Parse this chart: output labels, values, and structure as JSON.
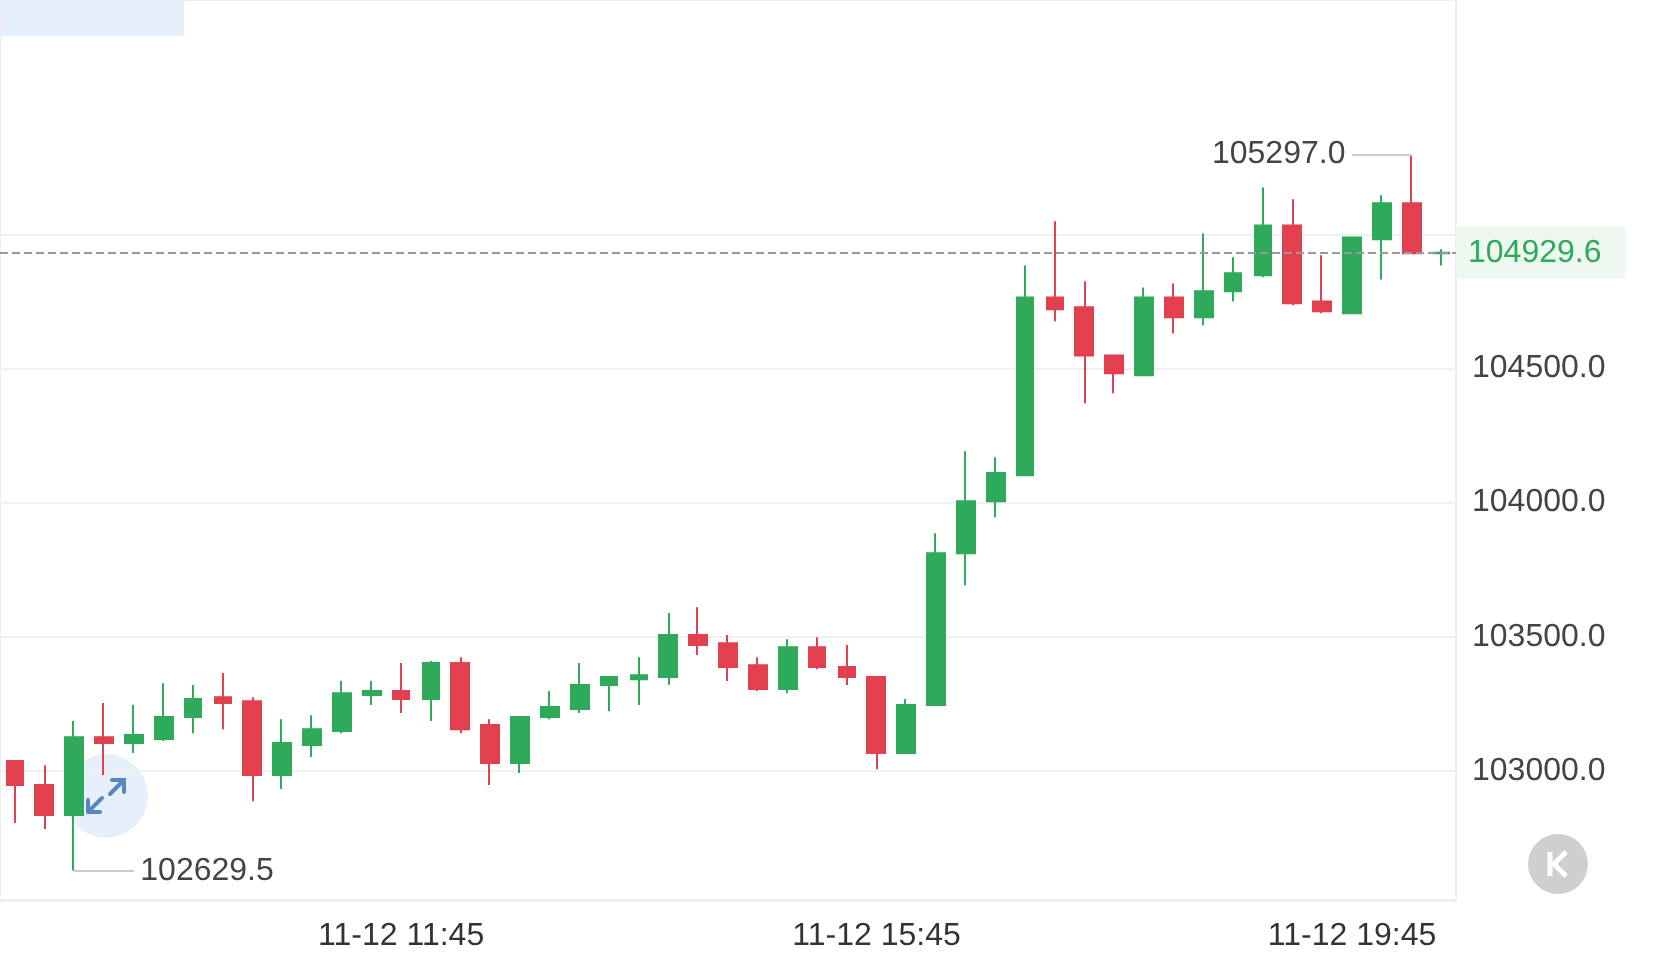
{
  "chart_data": {
    "type": "candlestick",
    "categories": [
      null,
      null,
      null,
      null,
      null,
      null,
      null,
      null,
      null,
      null,
      null,
      null,
      null,
      "11-12 11:45",
      null,
      null,
      null,
      null,
      null,
      null,
      null,
      null,
      null,
      null,
      null,
      null,
      null,
      null,
      null,
      "11-12 15:45",
      null,
      null,
      null,
      null,
      null,
      null,
      null,
      null,
      null,
      null,
      null,
      null,
      null,
      null,
      null,
      "11-12 19:45",
      null,
      null,
      null
    ],
    "ohlc": [
      [
        103037,
        103040,
        102807,
        102948
      ],
      [
        102948,
        103022,
        102784,
        102836
      ],
      [
        102836,
        103186,
        102629.5,
        103126
      ],
      [
        103126,
        103253,
        102985,
        103104
      ],
      [
        103104,
        103246,
        103067,
        103134
      ],
      [
        103119,
        103327,
        103112,
        103201
      ],
      [
        103201,
        103320,
        103141,
        103268
      ],
      [
        103275,
        103365,
        103156,
        103253
      ],
      [
        103260,
        103275,
        102888,
        102985
      ],
      [
        102985,
        103193,
        102933,
        103104
      ],
      [
        103097,
        103208,
        103052,
        103156
      ],
      [
        103149,
        103335,
        103141,
        103290
      ],
      [
        103283,
        103335,
        103246,
        103298
      ],
      [
        103298,
        103402,
        103216,
        103268
      ],
      [
        103268,
        103410,
        103186,
        103402
      ],
      [
        103402,
        103424,
        103141,
        103156
      ],
      [
        103171,
        103193,
        102948,
        103030
      ],
      [
        103030,
        103201,
        102993,
        103201
      ],
      [
        103201,
        103298,
        103193,
        103238
      ],
      [
        103231,
        103402,
        103216,
        103320
      ],
      [
        103320,
        103350,
        103223,
        103350
      ],
      [
        103342,
        103424,
        103246,
        103357
      ],
      [
        103350,
        103588,
        103320,
        103506
      ],
      [
        103506,
        103610,
        103432,
        103469
      ],
      [
        103476,
        103506,
        103335,
        103387
      ],
      [
        103394,
        103424,
        103298,
        103305
      ],
      [
        103305,
        103491,
        103290,
        103461
      ],
      [
        103461,
        103498,
        103379,
        103387
      ],
      [
        103387,
        103469,
        103320,
        103350
      ],
      [
        103350,
        103350,
        103007,
        103067
      ],
      [
        103067,
        103268,
        103067,
        103246
      ],
      [
        103246,
        103885,
        103246,
        103811
      ],
      [
        103811,
        104190,
        103692,
        104004
      ],
      [
        104004,
        104168,
        103945,
        104109
      ],
      [
        104101,
        104882,
        104101,
        104763
      ],
      [
        104763,
        105046,
        104674,
        104719
      ],
      [
        104726,
        104823,
        104369,
        104547
      ],
      [
        104547,
        104547,
        104406,
        104481
      ],
      [
        104473,
        104800,
        104473,
        104763
      ],
      [
        104763,
        104815,
        104629,
        104689
      ],
      [
        104689,
        105001,
        104659,
        104786
      ],
      [
        104786,
        104912,
        104748,
        104853
      ],
      [
        104845,
        105172,
        104838,
        105031
      ],
      [
        105031,
        105128,
        104734,
        104741
      ],
      [
        104748,
        104920,
        104704,
        104711
      ],
      [
        104704,
        104986,
        104704,
        104986
      ],
      [
        104979,
        105143,
        104830,
        105113
      ],
      [
        105113,
        105297,
        104927,
        104927
      ],
      [
        104927,
        104942,
        104882,
        104929.6
      ]
    ],
    "colors": [
      "#e2404f",
      "#e2404f",
      "#2fa95a",
      "#e2404f",
      "#2fa95a",
      "#2fa95a",
      "#2fa95a",
      "#e2404f",
      "#e2404f",
      "#2fa95a",
      "#2fa95a",
      "#2fa95a",
      "#2fa95a",
      "#e2404f",
      "#2fa95a",
      "#e2404f",
      "#e2404f",
      "#2fa95a",
      "#2fa95a",
      "#2fa95a",
      "#2fa95a",
      "#2fa95a",
      "#2fa95a",
      "#e2404f",
      "#e2404f",
      "#e2404f",
      "#2fa95a",
      "#e2404f",
      "#e2404f",
      "#e2404f",
      "#2fa95a",
      "#2fa95a",
      "#2fa95a",
      "#2fa95a",
      "#2fa95a",
      "#e2404f",
      "#e2404f",
      "#e2404f",
      "#2fa95a",
      "#e2404f",
      "#2fa95a",
      "#2fa95a",
      "#2fa95a",
      "#e2404f",
      "#e2404f",
      "#2fa95a",
      "#2fa95a",
      "#e2404f",
      "#2fa95a"
    ],
    "ylim": [
      102520,
      105870
    ],
    "yticks": [
      {
        "value": 103000,
        "label": "103000.0"
      },
      {
        "value": 103500,
        "label": "103500.0"
      },
      {
        "value": 104000,
        "label": "104000.0"
      },
      {
        "value": 104500,
        "label": "104500.0"
      },
      {
        "value": 105000,
        "label": null
      }
    ],
    "grid": "y",
    "ref_lines": [
      {
        "axis": "y",
        "value": 104929.6,
        "label": "104929.6",
        "line_style": "dashed"
      }
    ],
    "annotations": [
      "105297.0",
      "102629.5"
    ]
  }
}
